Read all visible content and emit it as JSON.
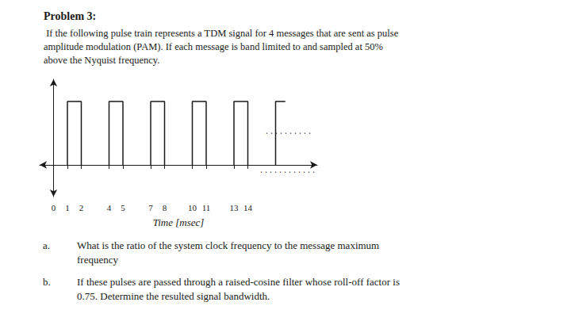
{
  "chart_data": {
    "type": "line",
    "title": "Problem 3:",
    "subtitle": " If the following pulse train represents a TDM signal for 4 messages that are sent as pulse\namplitude modulation (PAM). If each message is band limited to and sampled at 50%\nabove the Nyquist frequency.",
    "x_label": "Time [msec]",
    "x": [
      1,
      1,
      2,
      2,
      2,
      4,
      4,
      5,
      5,
      5,
      7,
      7,
      8,
      8,
      8,
      10,
      10,
      11,
      11,
      11,
      13,
      13,
      14,
      14,
      14,
      16,
      16,
      16.7
    ],
    "values": [
      0,
      1.0,
      1.0,
      0,
      null,
      0,
      1.0,
      1.0,
      0,
      null,
      0,
      1.0,
      1.0,
      0,
      null,
      0,
      1.0,
      1.0,
      0,
      null,
      0,
      1.0,
      1.0,
      0,
      null,
      0,
      1.0,
      1.0
    ],
    "color": "#1a1a1a",
    "xlim": [
      -1.0,
      19.0
    ],
    "ylim": [
      -0.5,
      1.35
    ],
    "xticks": [
      0,
      1,
      2,
      4,
      5,
      7,
      8,
      10,
      11,
      13,
      14
    ],
    "tick_labels": "x",
    "grid": false,
    "annotations": [
      {
        "text": "..........",
        "x": 15.2,
        "y": 0.52
      },
      {
        "text": "............",
        "x": 14.8,
        "y": -0.09
      },
      {
        "text": "a."
      },
      {
        "text": "What is the ratio of the system clock frequency to the message maximum\nfrequency"
      },
      {
        "text": "b."
      },
      {
        "text": "If these pulses are passed through a raised-cosine filter whose roll-off factor is\n0.75. Determine the resulted signal bandwidth."
      }
    ]
  }
}
